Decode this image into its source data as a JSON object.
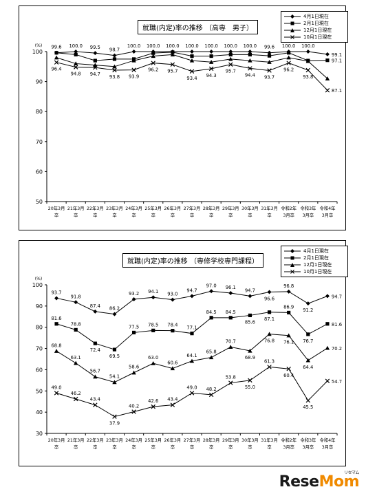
{
  "chart_data": [
    {
      "type": "line",
      "title": "就職(内定)率の推移 （高専　男子）",
      "ylabel": "(%)",
      "ylim": [
        50,
        100
      ],
      "yticks": [
        50,
        60,
        70,
        80,
        90,
        100
      ],
      "categories": [
        [
          "20年3月",
          "卒"
        ],
        [
          "21年3月",
          "卒"
        ],
        [
          "22年3月",
          "卒"
        ],
        [
          "23年3月",
          "卒"
        ],
        [
          "24年3月",
          "卒"
        ],
        [
          "25年3月",
          "卒"
        ],
        [
          "26年3月",
          "卒"
        ],
        [
          "27年3月",
          "卒"
        ],
        [
          "28年3月",
          "卒"
        ],
        [
          "29年3月",
          "卒"
        ],
        [
          "30年3月",
          "卒"
        ],
        [
          "31年3月",
          "卒"
        ],
        [
          "令和2年",
          "3月卒"
        ],
        [
          "令和3年",
          "3月卒"
        ],
        [
          "令和4年",
          "3月卒"
        ]
      ],
      "legend_position": "top-right",
      "series": [
        {
          "name": "4月1日現在",
          "marker": "diamond",
          "values": [
            99.6,
            100.0,
            99.5,
            98.7,
            100.0,
            100.0,
            100.0,
            100.0,
            100.0,
            100.0,
            100.0,
            99.6,
            100.0,
            100.0,
            99.1
          ],
          "labels": [
            "99.6",
            "100.0",
            "99.5",
            "98.7",
            "100.0",
            "100.0",
            "100.0",
            "100.0",
            "100.0",
            "100.0",
            "100.0",
            "99.6",
            "100.0",
            "100.0",
            "99.1"
          ]
        },
        {
          "name": "2月1日現在",
          "marker": "square",
          "values": [
            99.6,
            99.0,
            97.0,
            97.5,
            97.5,
            99.5,
            99.8,
            98.5,
            98.5,
            99.0,
            99.0,
            98.6,
            99.6,
            97.0,
            97.1
          ],
          "labels": [
            "",
            "",
            "",
            "",
            "",
            "",
            "",
            "",
            "",
            "",
            "",
            "",
            "",
            "",
            "97.1"
          ]
        },
        {
          "name": "12月1日現在",
          "marker": "triangle",
          "values": [
            98.0,
            96.0,
            95.5,
            95.0,
            97.0,
            98.5,
            99.0,
            97.0,
            96.5,
            97.5,
            97.0,
            96.5,
            98.0,
            96.8,
            91.0
          ],
          "labels": [
            "",
            "",
            "",
            "",
            "",
            "",
            "",
            "",
            "",
            "",
            "",
            "",
            "",
            "",
            ""
          ]
        },
        {
          "name": "10月1日現在",
          "marker": "cross",
          "values": [
            96.4,
            94.8,
            94.7,
            93.8,
            93.9,
            96.2,
            95.7,
            93.4,
            94.3,
            95.7,
            94.4,
            93.7,
            96.2,
            93.8,
            87.1
          ],
          "labels": [
            "96.4",
            "94.8",
            "94.7",
            "93.8",
            "93.9",
            "96.2",
            "95.7",
            "93.4",
            "94.3",
            "95.7",
            "94.4",
            "93.7",
            "96.2",
            "93.8",
            "87.1"
          ]
        }
      ]
    },
    {
      "type": "line",
      "title": "就職(内定)率の推移 （専修学校専門課程）",
      "ylabel": "(%)",
      "ylim": [
        30,
        100
      ],
      "yticks": [
        30,
        40,
        50,
        60,
        70,
        80,
        90,
        100
      ],
      "categories": [
        [
          "20年3月",
          "卒"
        ],
        [
          "21年3月",
          "卒"
        ],
        [
          "22年3月",
          "卒"
        ],
        [
          "23年3月",
          "卒"
        ],
        [
          "24年3月",
          "卒"
        ],
        [
          "25年3月",
          "卒"
        ],
        [
          "26年3月",
          "卒"
        ],
        [
          "27年3月",
          "卒"
        ],
        [
          "28年3月",
          "卒"
        ],
        [
          "29年3月",
          "卒"
        ],
        [
          "30年3月",
          "卒"
        ],
        [
          "31年3月",
          "卒"
        ],
        [
          "令和2年",
          "3月卒"
        ],
        [
          "令和3年",
          "3月卒"
        ],
        [
          "令和4年",
          "3月卒"
        ]
      ],
      "legend_position": "top-right",
      "series": [
        {
          "name": "4月1日現在",
          "marker": "diamond",
          "values": [
            93.7,
            91.8,
            87.4,
            86.2,
            93.2,
            94.1,
            93.0,
            94.7,
            97.0,
            96.1,
            94.7,
            96.6,
            96.8,
            91.2,
            94.7
          ],
          "labels": [
            "93.7",
            "91.8",
            "87.4",
            "86.2",
            "93.2",
            "94.1",
            "93.0",
            "94.7",
            "97.0",
            "96.1",
            "94.7",
            "96.6",
            "96.8",
            "91.2",
            "94.7"
          ]
        },
        {
          "name": "2月1日現在",
          "marker": "square",
          "values": [
            81.6,
            78.8,
            72.4,
            69.5,
            77.5,
            78.5,
            78.4,
            77.1,
            84.5,
            84.5,
            85.6,
            87.1,
            86.9,
            76.7,
            81.6
          ],
          "labels": [
            "81.6",
            "78.8",
            "72.4",
            "69.5",
            "77.5",
            "78.5",
            "78.4",
            "77.1",
            "84.5",
            "84.5",
            "85.6",
            "87.1",
            "86.9",
            "76.7",
            "81.6"
          ]
        },
        {
          "name": "12月1日現在",
          "marker": "triangle",
          "values": [
            68.8,
            63.1,
            56.7,
            54.1,
            58.6,
            63.0,
            60.6,
            64.1,
            65.8,
            70.7,
            68.9,
            76.8,
            76.1,
            64.4,
            70.2
          ],
          "labels": [
            "68.8",
            "63.1",
            "56.7",
            "54.1",
            "58.6",
            "63.0",
            "60.6",
            "64.1",
            "65.8",
            "70.7",
            "68.9",
            "76.8",
            "76.1",
            "64.4",
            "70.2"
          ]
        },
        {
          "name": "10月1日現在",
          "marker": "cross",
          "values": [
            49.0,
            46.2,
            43.4,
            37.9,
            40.2,
            42.6,
            43.4,
            49.0,
            48.2,
            53.8,
            55.0,
            61.3,
            60.4,
            45.5,
            54.7
          ],
          "labels": [
            "49.0",
            "46.2",
            "43.4",
            "37.9",
            "40.2",
            "42.6",
            "43.4",
            "49.0",
            "48.2",
            "53.8",
            "55.0",
            "61.3",
            "60.4",
            "45.5",
            "54.7"
          ]
        }
      ]
    }
  ],
  "watermark": {
    "text_a": "Rese",
    "text_b": "Mom",
    "sub": "リセマム"
  }
}
